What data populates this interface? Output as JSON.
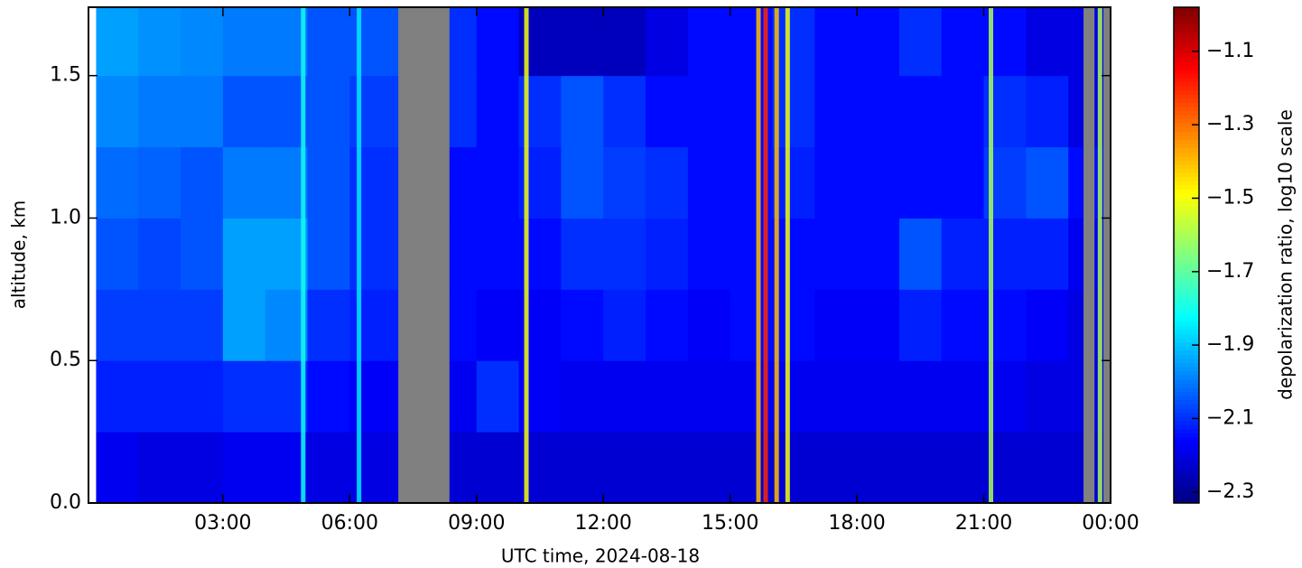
{
  "chart_data": {
    "type": "heatmap",
    "colormap": "jet",
    "xlabel": "UTC time,  2024-08-18",
    "ylabel": "altitude, km",
    "colorbar_label": "depolarization ratio, log10 scale",
    "xlim": [
      -0.18,
      24
    ],
    "xticks": [
      {
        "value": 3,
        "label": "03:00"
      },
      {
        "value": 6,
        "label": "06:00"
      },
      {
        "value": 9,
        "label": "09:00"
      },
      {
        "value": 12,
        "label": "12:00"
      },
      {
        "value": 15,
        "label": "15:00"
      },
      {
        "value": 18,
        "label": "18:00"
      },
      {
        "value": 21,
        "label": "21:00"
      },
      {
        "value": 24,
        "label": "00:00"
      }
    ],
    "ylim": [
      0,
      1.74
    ],
    "yticks": [
      {
        "value": 0,
        "label": "0.0"
      },
      0.5,
      {
        "value": 1,
        "label": "1.0"
      },
      1.5
    ],
    "clim": [
      -2.33,
      -0.98
    ],
    "cticks": [
      {
        "value": -1.1,
        "label": "−1.1"
      },
      {
        "value": -1.3,
        "label": "−1.3"
      },
      {
        "value": -1.5,
        "label": "−1.5"
      },
      {
        "value": -1.7,
        "label": "−1.7"
      },
      {
        "value": -1.9,
        "label": "−1.9"
      },
      {
        "value": -2.1,
        "label": "−2.1"
      },
      {
        "value": -2.3,
        "label": "−2.3"
      }
    ],
    "x": [
      0.5,
      1.5,
      2.5,
      3.5,
      4.5,
      5.5,
      6.5,
      7.5,
      8.5,
      9.5,
      10.5,
      11.5,
      12.5,
      13.5,
      14.5,
      15.5,
      16.5,
      17.5,
      18.5,
      19.5,
      20.5,
      21.5,
      22.5,
      23.5
    ],
    "y": [
      0.125,
      0.375,
      0.625,
      0.875,
      1.125,
      1.375,
      1.625
    ],
    "z": [
      [
        -2.18,
        -2.2,
        -2.2,
        -2.18,
        -2.18,
        -2.2,
        -2.2,
        -2.2,
        -2.22,
        -2.22,
        -2.22,
        -2.22,
        -2.22,
        -2.22,
        -2.22,
        -2.22,
        -2.22,
        -2.22,
        -2.22,
        -2.22,
        -2.22,
        -2.22,
        -2.22,
        -2.22
      ],
      [
        -2.12,
        -2.12,
        -2.12,
        -2.1,
        -2.1,
        -2.15,
        -2.17,
        -2.17,
        -2.18,
        -2.1,
        -2.17,
        -2.18,
        -2.18,
        -2.18,
        -2.18,
        -2.18,
        -2.18,
        -2.18,
        -2.18,
        -2.18,
        -2.18,
        -2.18,
        -2.2,
        -2.2
      ],
      [
        -2.08,
        -2.08,
        -2.08,
        -1.95,
        -1.98,
        -2.1,
        -2.12,
        -2.12,
        -2.15,
        -2.17,
        -2.17,
        -2.15,
        -2.12,
        -2.15,
        -2.17,
        -2.15,
        -2.15,
        -2.17,
        -2.17,
        -2.12,
        -2.15,
        -2.15,
        -2.17,
        -2.2
      ],
      [
        -2.05,
        -2.07,
        -2.05,
        -1.95,
        -1.95,
        -2.05,
        -2.1,
        -2.1,
        -2.15,
        -2.15,
        -2.15,
        -2.1,
        -2.1,
        -2.12,
        -2.15,
        -2.15,
        -2.15,
        -2.15,
        -2.15,
        -2.05,
        -2.12,
        -2.12,
        -2.12,
        -2.18
      ],
      [
        -2.02,
        -2.03,
        -2.05,
        -2.0,
        -2.0,
        -2.05,
        -2.1,
        -2.1,
        -2.15,
        -2.15,
        -2.12,
        -2.05,
        -2.08,
        -2.1,
        -2.15,
        -2.15,
        -2.12,
        -2.15,
        -2.15,
        -2.15,
        -2.15,
        -2.08,
        -2.05,
        -2.15
      ],
      [
        -1.98,
        -2.0,
        -2.0,
        -2.05,
        -2.05,
        -2.05,
        -2.08,
        -2.08,
        -2.1,
        -2.15,
        -2.1,
        -2.05,
        -2.1,
        -2.15,
        -2.15,
        -2.15,
        -2.1,
        -2.15,
        -2.15,
        -2.15,
        -2.15,
        -2.1,
        -2.12,
        -2.2
      ],
      [
        -1.95,
        -1.97,
        -1.98,
        -2.0,
        -2.0,
        -2.05,
        -2.05,
        -2.05,
        -2.1,
        -2.15,
        -2.25,
        -2.25,
        -2.25,
        -2.2,
        -2.15,
        -2.15,
        -2.1,
        -2.15,
        -2.15,
        -2.1,
        -2.15,
        -2.15,
        -2.2,
        -2.2
      ]
    ],
    "stripes": [
      {
        "x": 4.9,
        "value": -1.8
      },
      {
        "x": 6.22,
        "value": -1.85
      },
      {
        "x": 10.18,
        "value": -1.5
      },
      {
        "x": 15.67,
        "value": -1.4
      },
      {
        "x": 15.84,
        "value": -1.2
      },
      {
        "x": 16.1,
        "value": -1.4
      },
      {
        "x": 16.36,
        "value": -1.5
      },
      {
        "x": 21.17,
        "value": -1.6
      },
      {
        "x": 23.75,
        "value": -1.6
      }
    ],
    "no_data": [
      [
        7.15,
        8.36
      ],
      [
        23.36,
        23.62
      ],
      [
        23.83,
        24
      ]
    ],
    "no_data_color": "#808080"
  }
}
